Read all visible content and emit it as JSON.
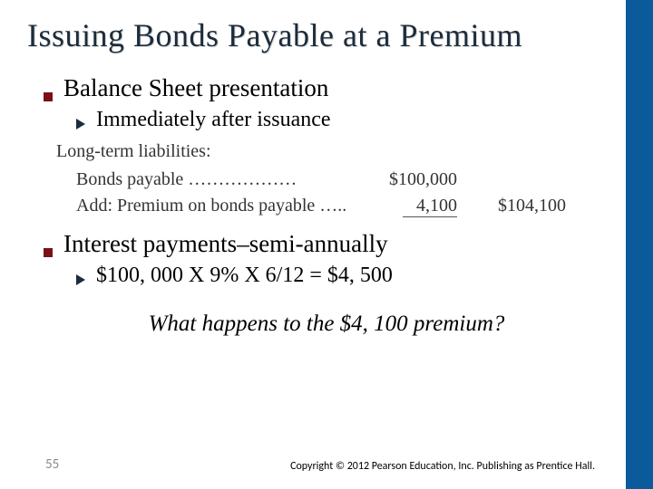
{
  "accent_color": "#0b5a9c",
  "title": "Issuing Bonds Payable at a Premium",
  "bullets": {
    "b1": "Balance Sheet presentation",
    "b1_sub": "Immediately after issuance",
    "b2": "Interest payments–semi-annually",
    "b2_sub": "$100, 000 X 9% X 6/12 = $4, 500"
  },
  "liab_table": {
    "header": "Long-term liabilities:",
    "row1_label": "Bonds payable ………………",
    "row1_amt": "$100,000",
    "row2_label": "Add: Premium on bonds payable …..",
    "row2_amt": "4,100",
    "total": "$104,100"
  },
  "question": "What happens to the $4, 100 premium?",
  "page_number": "55",
  "copyright": "Copyright © 2012 Pearson Education, Inc. Publishing as Prentice Hall."
}
